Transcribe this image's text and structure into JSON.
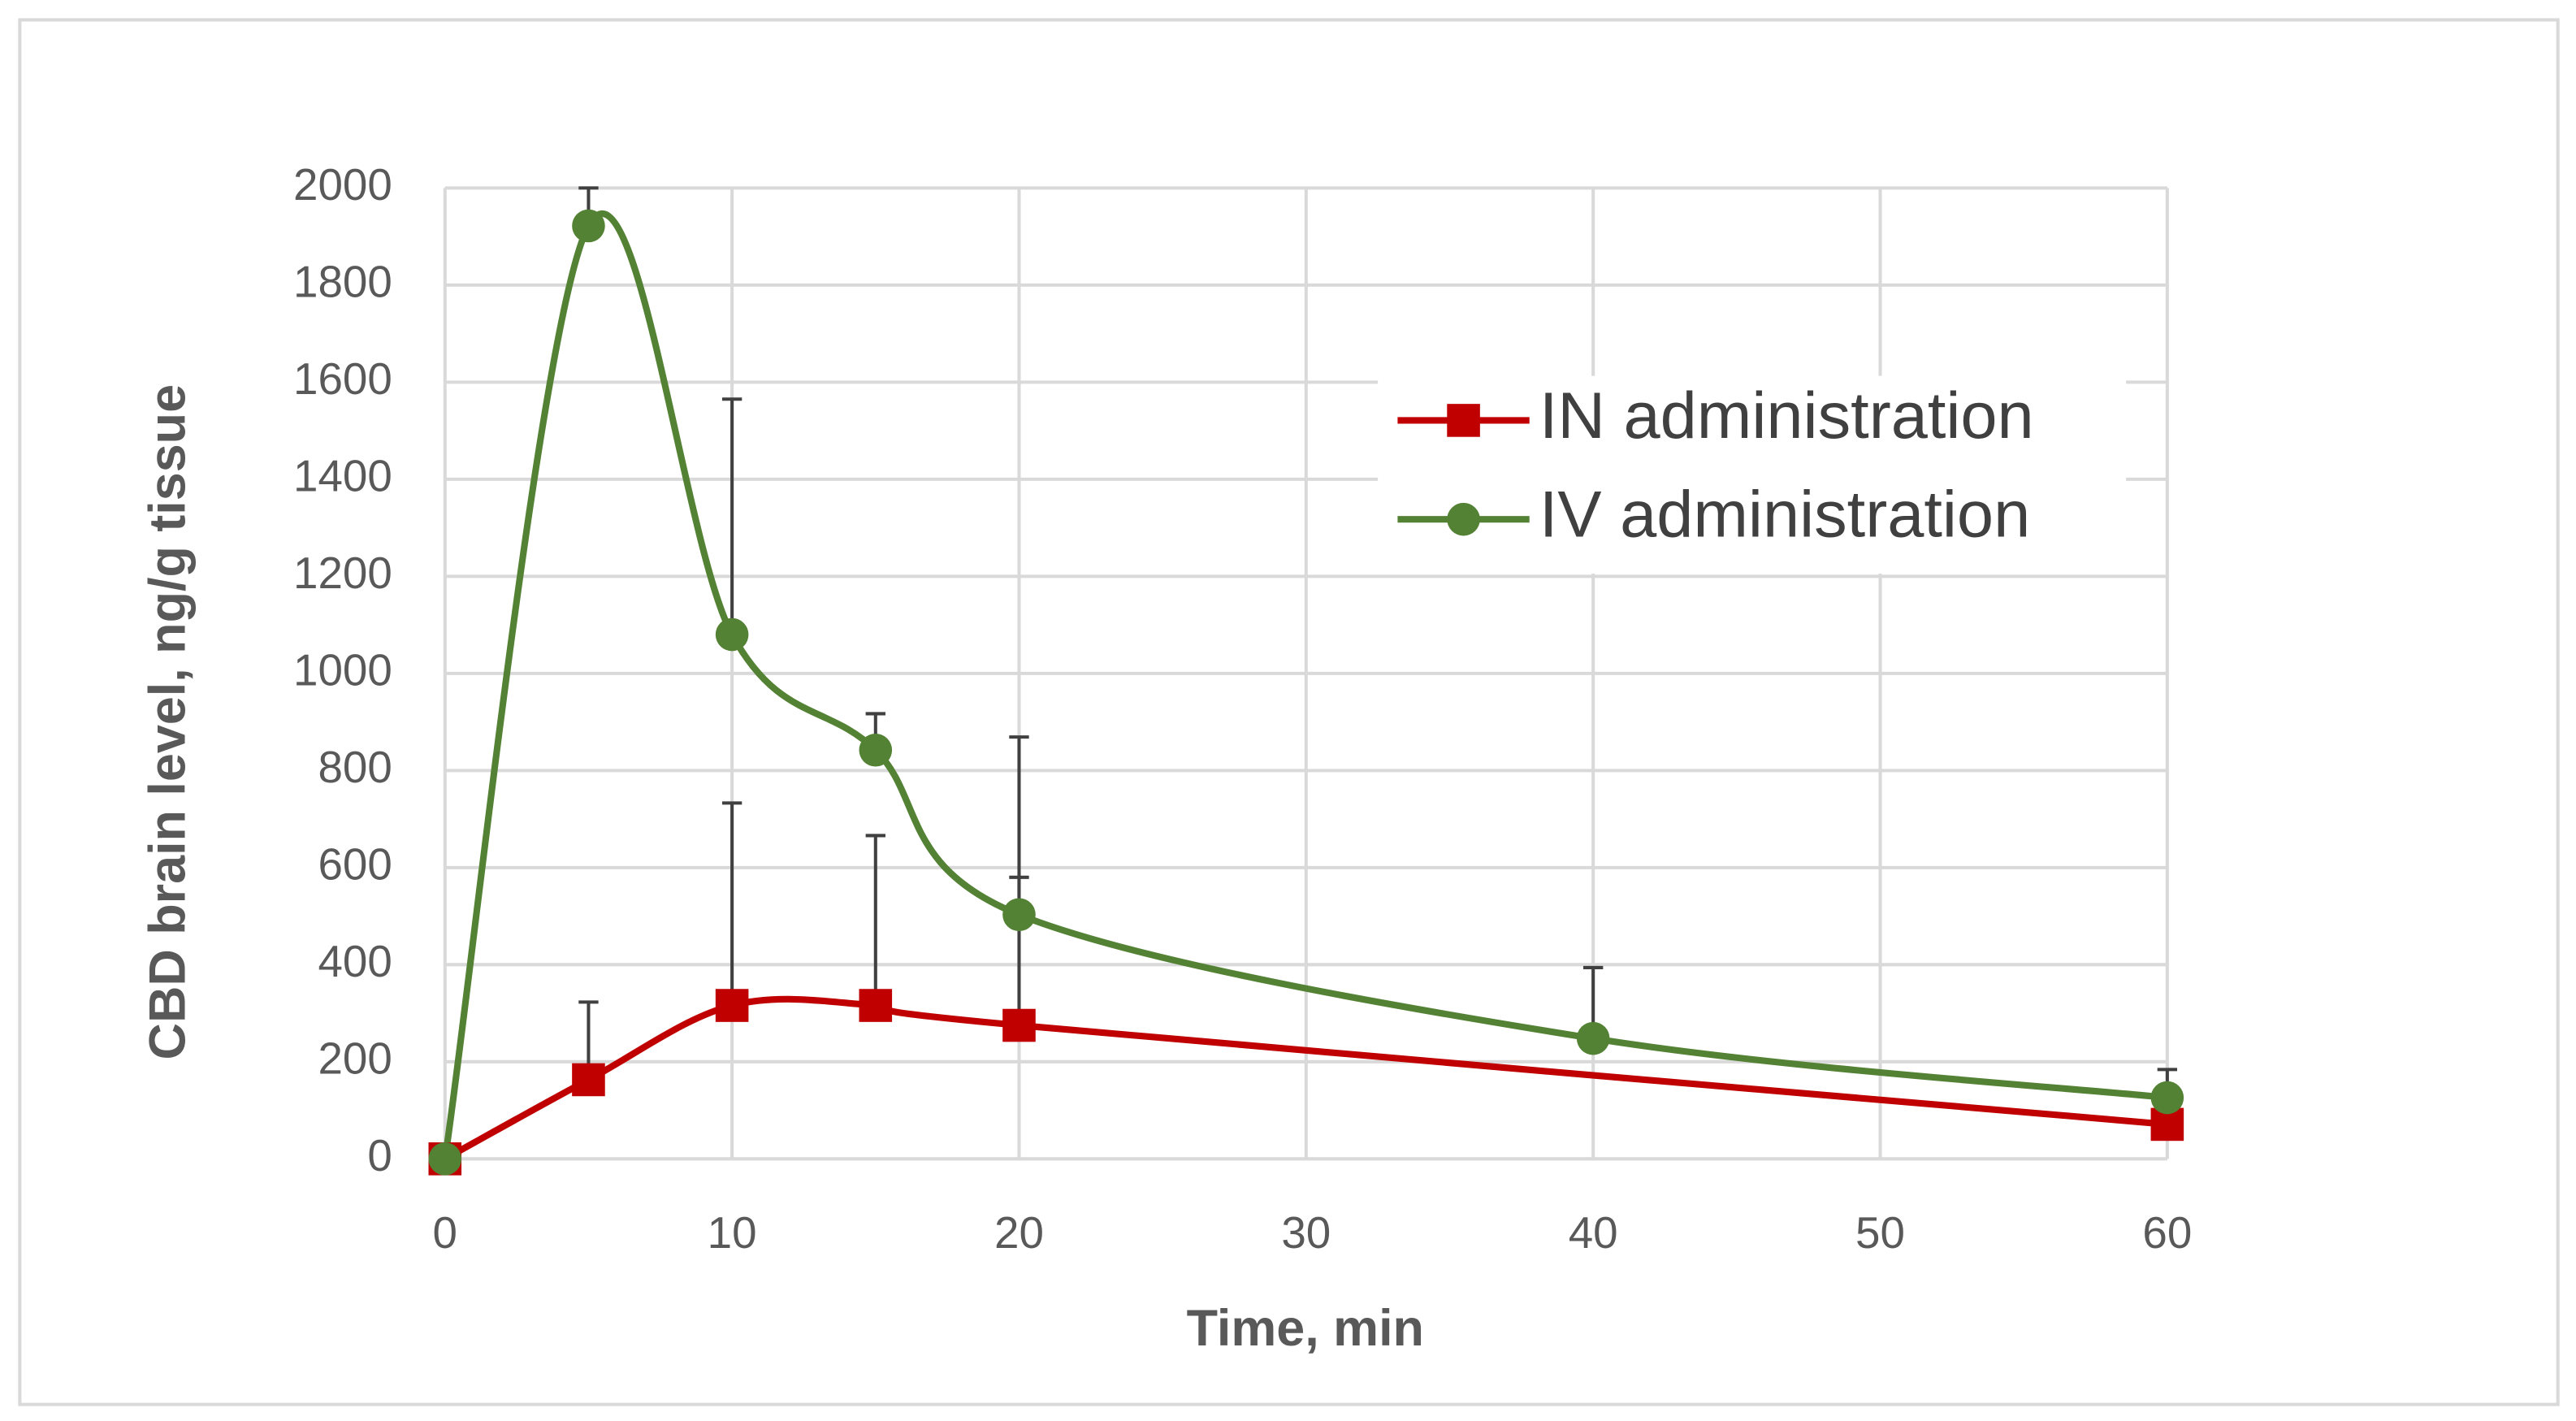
{
  "chart_data": {
    "type": "line",
    "x_label": "Time, min",
    "y_label": "CBD brain level, ng/g tissue",
    "xlim": [
      0,
      60
    ],
    "xticks": [
      0,
      10,
      20,
      30,
      40,
      50,
      60
    ],
    "ylim": [
      0,
      2000
    ],
    "yticks": [
      0,
      200,
      400,
      600,
      800,
      1000,
      1200,
      1400,
      1600,
      1800,
      2000
    ],
    "grid": true,
    "smooth": true,
    "legend": "upper right",
    "series": [
      {
        "name": "IN administration",
        "color": "#c00000",
        "marker": "square",
        "x": [
          0,
          5,
          10,
          15,
          20,
          60
        ],
        "values": [
          0,
          163,
          316,
          316,
          275,
          71
        ],
        "errors": [
          null,
          160,
          417,
          350,
          305,
          null
        ]
      },
      {
        "name": "IV administration",
        "color": "#548235",
        "marker": "circle",
        "x": [
          0,
          5,
          10,
          15,
          20,
          40,
          60
        ],
        "values": [
          0,
          1922,
          1080,
          842,
          503,
          248,
          126
        ],
        "errors": [
          null,
          78,
          485,
          75,
          366,
          146,
          58
        ]
      }
    ]
  }
}
